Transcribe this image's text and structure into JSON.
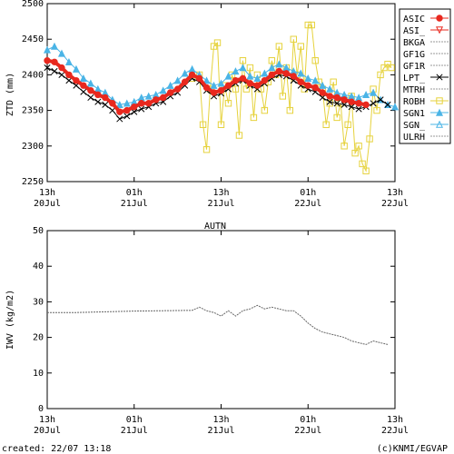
{
  "chart_data": [
    {
      "type": "line",
      "ylabel": "ZTD (mm)",
      "ylim": [
        2250,
        2500
      ],
      "y_ticks": [
        2250,
        2300,
        2350,
        2400,
        2450,
        2500
      ],
      "xlim_hours": [
        0,
        48
      ],
      "x_ticks": [
        {
          "hour": 0,
          "top": "13h",
          "bottom": "20Jul"
        },
        {
          "hour": 12,
          "top": "01h",
          "bottom": "21Jul"
        },
        {
          "hour": 24,
          "top": "13h",
          "bottom": "21Jul"
        },
        {
          "hour": 36,
          "top": "01h",
          "bottom": "22Jul"
        },
        {
          "hour": 48,
          "top": "13h",
          "bottom": "22Jul"
        }
      ],
      "legend_position": "right",
      "legend": [
        {
          "name": "ASIC",
          "color": "#e8281e",
          "marker": "circle-filled",
          "line": "solid"
        },
        {
          "name": "ASI_",
          "color": "#e8281e",
          "marker": "triangle-down-open",
          "line": "solid"
        },
        {
          "name": "BKGA",
          "color": "#999999",
          "marker": "none",
          "line": "dotted"
        },
        {
          "name": "GF1G",
          "color": "#999999",
          "marker": "none",
          "line": "dotted"
        },
        {
          "name": "GF1R",
          "color": "#999999",
          "marker": "none",
          "line": "dotted"
        },
        {
          "name": "LPT_",
          "color": "#000000",
          "marker": "x",
          "line": "solid"
        },
        {
          "name": "MTRH",
          "color": "#999999",
          "marker": "none",
          "line": "dotted"
        },
        {
          "name": "ROBH",
          "color": "#e6d23c",
          "marker": "square-open",
          "line": "solid"
        },
        {
          "name": "SGN1",
          "color": "#4ab4e6",
          "marker": "triangle-up-filled",
          "line": "solid"
        },
        {
          "name": "SGN_",
          "color": "#4ab4e6",
          "marker": "triangle-up-open",
          "line": "solid"
        },
        {
          "name": "ULRH",
          "color": "#999999",
          "marker": "none",
          "line": "dotted"
        }
      ],
      "series": [
        {
          "name": "ASIC",
          "hours": [
            0,
            1,
            2,
            3,
            4,
            5,
            6,
            7,
            8,
            9,
            10,
            11,
            12,
            13,
            14,
            15,
            16,
            17,
            18,
            19,
            20,
            21,
            22,
            23,
            24,
            25,
            26,
            27,
            28,
            29,
            30,
            31,
            32,
            33,
            34,
            35,
            36,
            37,
            38,
            39,
            40,
            41,
            42,
            43,
            44
          ],
          "values": [
            2420,
            2418,
            2410,
            2400,
            2392,
            2385,
            2378,
            2372,
            2368,
            2360,
            2348,
            2350,
            2355,
            2360,
            2360,
            2365,
            2368,
            2375,
            2380,
            2390,
            2400,
            2395,
            2382,
            2375,
            2378,
            2385,
            2392,
            2395,
            2388,
            2385,
            2392,
            2400,
            2405,
            2402,
            2398,
            2390,
            2385,
            2382,
            2375,
            2370,
            2368,
            2365,
            2362,
            2360,
            2358
          ]
        },
        {
          "name": "SGN1",
          "hours": [
            0,
            1,
            2,
            3,
            4,
            5,
            6,
            7,
            8,
            9,
            10,
            11,
            12,
            13,
            14,
            15,
            16,
            17,
            18,
            19,
            20,
            21,
            22,
            23,
            24,
            25,
            26,
            27,
            28,
            29,
            30,
            31,
            32,
            33,
            34,
            35,
            36,
            37,
            38,
            39,
            40,
            41,
            42,
            43,
            44,
            45,
            46,
            47,
            48
          ],
          "values": [
            2435,
            2440,
            2430,
            2418,
            2408,
            2395,
            2388,
            2380,
            2375,
            2365,
            2358,
            2360,
            2362,
            2368,
            2370,
            2372,
            2378,
            2385,
            2392,
            2402,
            2408,
            2400,
            2392,
            2385,
            2388,
            2398,
            2405,
            2410,
            2398,
            2395,
            2402,
            2410,
            2415,
            2410,
            2405,
            2402,
            2395,
            2392,
            2385,
            2380,
            2375,
            2372,
            2370,
            2368,
            2372,
            2375,
            2365,
            2358,
            2355
          ]
        },
        {
          "name": "LPT_",
          "hours": [
            0,
            1,
            2,
            3,
            4,
            5,
            6,
            7,
            8,
            9,
            10,
            11,
            12,
            13,
            14,
            15,
            16,
            17,
            18,
            19,
            20,
            21,
            22,
            23,
            24,
            25,
            26,
            27,
            28,
            29,
            30,
            31,
            32,
            33,
            34,
            35,
            36,
            37,
            38,
            39,
            40,
            41,
            42,
            43,
            44,
            45,
            46,
            47
          ],
          "values": [
            2410,
            2405,
            2400,
            2392,
            2385,
            2376,
            2368,
            2362,
            2358,
            2350,
            2338,
            2342,
            2348,
            2352,
            2355,
            2360,
            2362,
            2370,
            2375,
            2385,
            2395,
            2390,
            2378,
            2370,
            2374,
            2380,
            2388,
            2392,
            2385,
            2380,
            2388,
            2395,
            2400,
            2398,
            2392,
            2385,
            2380,
            2376,
            2368,
            2362,
            2360,
            2358,
            2355,
            2352,
            2355,
            2360,
            2365,
            2358
          ]
        },
        {
          "name": "ROBH",
          "hours": [
            20,
            21,
            21.5,
            22,
            22.5,
            23,
            23.5,
            24,
            24.5,
            25,
            25.5,
            26,
            26.5,
            27,
            27.5,
            28,
            28.5,
            29,
            29.5,
            30,
            30.5,
            31,
            31.5,
            32,
            32.5,
            33,
            33.5,
            34,
            34.5,
            35,
            35.5,
            36,
            36.5,
            37,
            37.5,
            38,
            38.5,
            39,
            39.5,
            40,
            40.5,
            41,
            41.5,
            42,
            42.5,
            43,
            43.5,
            44,
            44.5,
            45,
            45.5,
            46,
            46.5,
            47,
            47.5
          ],
          "values": [
            2395,
            2400,
            2330,
            2295,
            2380,
            2440,
            2445,
            2330,
            2385,
            2360,
            2400,
            2380,
            2315,
            2420,
            2380,
            2410,
            2340,
            2400,
            2380,
            2350,
            2390,
            2420,
            2400,
            2440,
            2370,
            2410,
            2350,
            2450,
            2400,
            2440,
            2380,
            2470,
            2470,
            2420,
            2390,
            2380,
            2330,
            2360,
            2390,
            2340,
            2360,
            2300,
            2330,
            2370,
            2290,
            2300,
            2275,
            2265,
            2310,
            2380,
            2350,
            2400,
            2410,
            2415,
            2410
          ]
        }
      ]
    },
    {
      "type": "line",
      "title": "AUTN",
      "ylabel": "IWV (kg/m2)",
      "ylim": [
        0,
        50
      ],
      "y_ticks": [
        0,
        10,
        20,
        30,
        40,
        50
      ],
      "xlim_hours": [
        0,
        48
      ],
      "x_ticks": [
        {
          "hour": 0,
          "top": "13h",
          "bottom": "20Jul"
        },
        {
          "hour": 12,
          "top": "01h",
          "bottom": "21Jul"
        },
        {
          "hour": 24,
          "top": "13h",
          "bottom": "21Jul"
        },
        {
          "hour": 36,
          "top": "01h",
          "bottom": "22Jul"
        },
        {
          "hour": 48,
          "top": "13h",
          "bottom": "22Jul"
        }
      ],
      "series": [
        {
          "hours": [
            0,
            4,
            8,
            12,
            16,
            20,
            21,
            22,
            23,
            24,
            25,
            26,
            27,
            28,
            29,
            30,
            31,
            32,
            33,
            34,
            35,
            36,
            37,
            38,
            39,
            40,
            41,
            42,
            43,
            44,
            45,
            46,
            47
          ],
          "values": [
            27,
            27,
            27.2,
            27.4,
            27.5,
            27.6,
            28.5,
            27.5,
            27,
            26,
            27.5,
            26,
            27.5,
            28,
            29,
            28,
            28.5,
            28,
            27.5,
            27.5,
            26,
            24,
            22.5,
            21.5,
            21,
            20.5,
            20,
            19,
            18.5,
            18,
            19,
            18.5,
            18
          ]
        }
      ]
    }
  ],
  "footer": {
    "created": "created: 22/07 13:18",
    "credit": "(c)KNMI/EGVAP"
  }
}
